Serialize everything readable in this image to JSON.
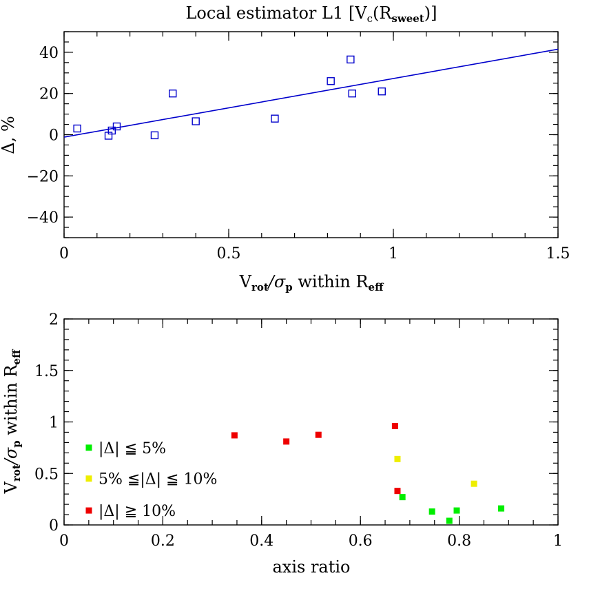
{
  "chart_data": [
    {
      "type": "scatter",
      "title": "Local estimator L1 [V_c(R_sweet)]",
      "title_parts": {
        "main": "Local estimator L1 [V",
        "sub1": "c",
        "mid": "(R",
        "sub2": "sweet",
        "end": ")]"
      },
      "xlabel": "V_rot/σ_p within R_eff",
      "xlabel_parts": {
        "a": "V",
        "a_sub": "rot",
        "b": "/σ",
        "b_sub": "p",
        "c": " within R",
        "c_sub": "eff"
      },
      "ylabel": "Δ, %",
      "xlim": [
        0,
        1.5
      ],
      "ylim": [
        -50,
        50
      ],
      "x_ticks": [
        0,
        0.5,
        1,
        1.5
      ],
      "x_tick_labels": [
        "0",
        "0.5",
        "1",
        "1.5"
      ],
      "y_ticks": [
        -40,
        -20,
        0,
        20,
        40
      ],
      "y_tick_labels": [
        "−40",
        "−20",
        "0",
        "20",
        "40"
      ],
      "marker": "open-square",
      "color": "#0000cc",
      "points": [
        {
          "x": 0.04,
          "y": 3
        },
        {
          "x": 0.135,
          "y": -0.5
        },
        {
          "x": 0.145,
          "y": 2
        },
        {
          "x": 0.16,
          "y": 4
        },
        {
          "x": 0.275,
          "y": -0.3
        },
        {
          "x": 0.33,
          "y": 20
        },
        {
          "x": 0.4,
          "y": 6.5
        },
        {
          "x": 0.64,
          "y": 7.8
        },
        {
          "x": 0.81,
          "y": 26
        },
        {
          "x": 0.87,
          "y": 36.5
        },
        {
          "x": 0.875,
          "y": 20
        },
        {
          "x": 0.965,
          "y": 21
        }
      ],
      "fit_line": {
        "x": [
          0,
          1.5
        ],
        "y": [
          -1.2,
          41.5
        ]
      },
      "grid": false
    },
    {
      "type": "scatter",
      "xlabel": "axis ratio",
      "ylabel": "V_rot/σ_p within R_eff",
      "ylabel_parts": {
        "a": "V",
        "a_sub": "rot",
        "b": "/σ",
        "b_sub": "p",
        "c": " within R",
        "c_sub": "eff"
      },
      "xlim": [
        0,
        1
      ],
      "ylim": [
        0,
        2
      ],
      "x_ticks": [
        0,
        0.2,
        0.4,
        0.6,
        0.8,
        1
      ],
      "x_tick_labels": [
        "0",
        "0.2",
        "0.4",
        "0.6",
        "0.8",
        "1"
      ],
      "y_ticks": [
        0,
        0.5,
        1,
        1.5,
        2
      ],
      "y_tick_labels": [
        "0",
        "0.5",
        "1",
        "1.5",
        "2"
      ],
      "marker": "filled-square",
      "legend_position": "middle-left",
      "grid": false,
      "series": [
        {
          "name": "|Δ| ≦ 5%",
          "color": "#00ee00",
          "points": [
            {
              "x": 0.685,
              "y": 0.27
            },
            {
              "x": 0.745,
              "y": 0.13
            },
            {
              "x": 0.78,
              "y": 0.04
            },
            {
              "x": 0.795,
              "y": 0.14
            },
            {
              "x": 0.885,
              "y": 0.16
            }
          ]
        },
        {
          "name": "5% ≦|Δ| ≦ 10%",
          "color": "#eeee00",
          "points": [
            {
              "x": 0.675,
              "y": 0.64
            },
            {
              "x": 0.83,
              "y": 0.4
            }
          ]
        },
        {
          "name": "|Δ| ≧ 10%",
          "color": "#ee0000",
          "points": [
            {
              "x": 0.345,
              "y": 0.87
            },
            {
              "x": 0.45,
              "y": 0.81
            },
            {
              "x": 0.515,
              "y": 0.875
            },
            {
              "x": 0.67,
              "y": 0.96
            },
            {
              "x": 0.675,
              "y": 0.33
            }
          ]
        }
      ]
    }
  ]
}
